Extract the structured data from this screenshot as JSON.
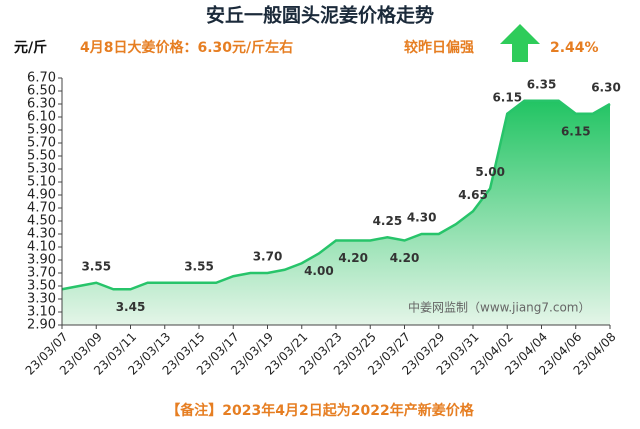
{
  "chart_data": {
    "type": "area",
    "title": "安丘一般圆头泥姜价格走势",
    "unit_label": "元/斤",
    "subtitle": "4月8日大姜价格：6.30元/斤左右",
    "change_text": "较昨日偏强",
    "change_value": "2.44%",
    "watermark": "中姜网监制（www.jiang7.com）",
    "note": "【备注】2023年4月2日起为2022年产新姜价格",
    "color": "#27c46a",
    "categories": [
      "23/03/07",
      null,
      "23/03/09",
      null,
      "23/03/11",
      null,
      "23/03/13",
      null,
      "23/03/15",
      null,
      "23/03/17",
      null,
      "23/03/19",
      null,
      "23/03/21",
      null,
      "23/03/23",
      null,
      "23/03/25",
      null,
      "23/03/27",
      null,
      "23/03/29",
      null,
      "23/03/31",
      null,
      "23/04/02",
      null,
      "23/04/04",
      null,
      "23/04/06",
      null,
      "23/04/08"
    ],
    "values": [
      3.45,
      3.5,
      3.55,
      3.45,
      3.45,
      3.55,
      3.55,
      3.55,
      3.55,
      3.55,
      3.65,
      3.7,
      3.7,
      3.75,
      3.85,
      4.0,
      4.2,
      4.2,
      4.2,
      4.25,
      4.2,
      4.3,
      4.3,
      4.45,
      4.65,
      5.0,
      6.15,
      6.35,
      6.35,
      6.35,
      6.15,
      6.15,
      6.3
    ],
    "value_labels": [
      null,
      null,
      "3.55",
      null,
      "3.45",
      null,
      null,
      null,
      "3.55",
      null,
      null,
      null,
      "3.70",
      null,
      null,
      "4.00",
      null,
      "4.20",
      null,
      "4.25",
      "4.20",
      "4.30",
      null,
      null,
      "4.65",
      "5.00",
      "6.15",
      null,
      "6.35",
      null,
      "6.15",
      null,
      "6.30"
    ],
    "ylim": [
      2.9,
      6.7
    ],
    "yticks": [
      {
        "value": 2.9,
        "label": "2.90"
      },
      {
        "value": 3.1,
        "label": "3.10"
      },
      {
        "value": 3.3,
        "label": "3.30"
      },
      {
        "value": 3.5,
        "label": "3.50"
      },
      {
        "value": 3.7,
        "label": "3.70"
      },
      {
        "value": 3.9,
        "label": "3.90"
      },
      {
        "value": 4.1,
        "label": "4.10"
      },
      {
        "value": 4.3,
        "label": "4.30"
      },
      {
        "value": 4.5,
        "label": "4.50"
      },
      {
        "value": 4.7,
        "label": "4.70"
      },
      {
        "value": 4.9,
        "label": "4.90"
      },
      {
        "value": 5.1,
        "label": "5.10"
      },
      {
        "value": 5.3,
        "label": "5.30"
      },
      {
        "value": 5.5,
        "label": "5.50"
      },
      {
        "value": 5.7,
        "label": "5.70"
      },
      {
        "value": 5.9,
        "label": "5.90"
      },
      {
        "value": 6.1,
        "label": "6.10"
      },
      {
        "value": 6.3,
        "label": "6.30"
      },
      {
        "value": 6.5,
        "label": "6.50"
      },
      {
        "value": 6.7,
        "label": "6.70"
      }
    ],
    "grid": false
  }
}
